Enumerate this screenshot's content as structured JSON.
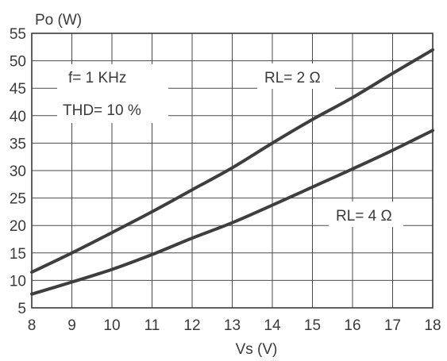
{
  "chart_data": {
    "type": "line",
    "title": "",
    "xlabel": "Vs (V)",
    "ylabel": "Po (W)",
    "xlim": [
      8,
      18
    ],
    "ylim": [
      5,
      55
    ],
    "xticks": [
      "8",
      "9",
      "10",
      "11",
      "12",
      "13",
      "14",
      "15",
      "16",
      "17",
      "18"
    ],
    "yticks": [
      "5",
      "10",
      "15",
      "20",
      "25",
      "30",
      "35",
      "40",
      "45",
      "50",
      "55"
    ],
    "grid": true,
    "annotations": [
      "f= 1 KHz",
      "THD= 10 %"
    ],
    "series": [
      {
        "name": "RL= 2 Ω",
        "x": [
          8,
          9,
          10,
          11,
          12,
          13,
          14,
          15,
          16,
          17,
          18
        ],
        "y": [
          11.5,
          15,
          18.7,
          22.5,
          26.5,
          30.5,
          35,
          39.3,
          43.3,
          47.7,
          52
        ]
      },
      {
        "name": "RL= 4 Ω",
        "x": [
          8,
          9,
          10,
          11,
          12,
          13,
          14,
          15,
          16,
          17,
          18
        ],
        "y": [
          7.5,
          9.7,
          12,
          14.7,
          17.7,
          20.5,
          23.7,
          27,
          30.3,
          33.7,
          37.3
        ]
      }
    ],
    "colors": {
      "line": "#3e3e3e",
      "grid": "#4a4a4a",
      "text": "#3a3a3a"
    }
  }
}
